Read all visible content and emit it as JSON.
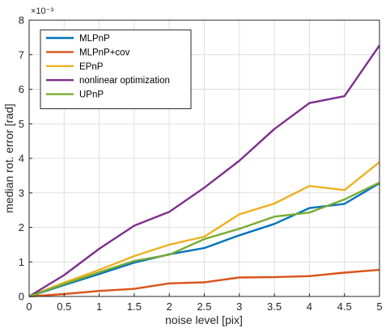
{
  "chart_data": {
    "type": "line",
    "xlabel": "noise level [pix]",
    "ylabel": "median rot. error [rad]",
    "y_scale_label": "×10⁻³",
    "xlim": [
      0,
      5
    ],
    "ylim": [
      0,
      8
    ],
    "xticks": [
      "0",
      "0.5",
      "1",
      "1.5",
      "2",
      "2.5",
      "3",
      "3.5",
      "4",
      "4.5",
      "5"
    ],
    "yticks": [
      "0",
      "1",
      "2",
      "3",
      "4",
      "5",
      "6",
      "7",
      "8"
    ],
    "grid": true,
    "legend_position": "top-left",
    "x": [
      0,
      0.5,
      1,
      1.5,
      2,
      2.5,
      3,
      3.5,
      4,
      4.5,
      5
    ],
    "series": [
      {
        "name": "MLPnP",
        "color": "#0072BD",
        "values": [
          0,
          0.33,
          0.65,
          0.98,
          1.22,
          1.4,
          1.77,
          2.1,
          2.56,
          2.68,
          3.28
        ]
      },
      {
        "name": "MLPnP+cov",
        "color": "#D95319",
        "values": [
          0,
          0.07,
          0.16,
          0.22,
          0.38,
          0.41,
          0.55,
          0.56,
          0.59,
          0.69,
          0.77
        ]
      },
      {
        "name": "EPnP",
        "color": "#EDB120",
        "values": [
          0,
          0.4,
          0.77,
          1.17,
          1.5,
          1.73,
          2.38,
          2.69,
          3.2,
          3.08,
          3.89
        ]
      },
      {
        "name": "nonlinear optimization",
        "color": "#7E2F8E",
        "values": [
          0,
          0.62,
          1.38,
          2.05,
          2.45,
          3.15,
          3.93,
          4.85,
          5.6,
          5.8,
          7.27
        ]
      },
      {
        "name": "UPnP",
        "color": "#77AC30",
        "values": [
          0,
          0.36,
          0.7,
          1.03,
          1.21,
          1.66,
          1.96,
          2.31,
          2.43,
          2.81,
          3.3
        ]
      }
    ]
  }
}
